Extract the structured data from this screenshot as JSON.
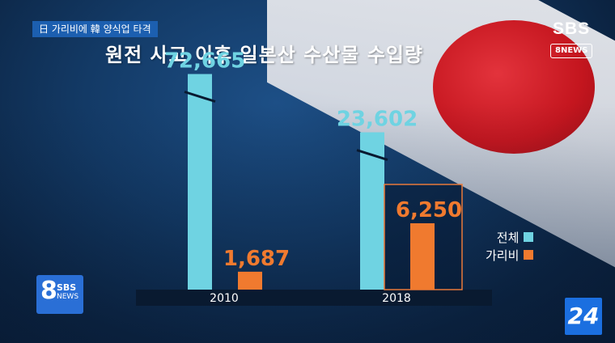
{
  "header": {
    "tag": "日 가리비에 韓 양식업 타격",
    "broadcaster": "SBS",
    "news_label": "8NEWS"
  },
  "logos": {
    "bottom_left": {
      "eight": "8",
      "sbs": "SBS",
      "news": "NEWS"
    },
    "bottom_right": "24"
  },
  "colors": {
    "total": "#6fd3e2",
    "scallop": "#f07a2f",
    "axis_band": "#091a30",
    "highlight_box": "#e8793a"
  },
  "chart_data": {
    "type": "bar",
    "title": "원전 사고 이후 일본산 수산물 수입량",
    "categories": [
      "2010",
      "2018"
    ],
    "series": [
      {
        "name": "전체",
        "values": [
          72665,
          23602
        ],
        "labels": [
          "72,665",
          "23,602"
        ]
      },
      {
        "name": "가리비",
        "values": [
          1687,
          6250
        ],
        "labels": [
          "1,687",
          "6,250"
        ]
      }
    ],
    "axis_break_on": "전체",
    "highlight": {
      "category": "2018",
      "series": "가리비"
    },
    "legend_position": "right",
    "grid": false
  }
}
